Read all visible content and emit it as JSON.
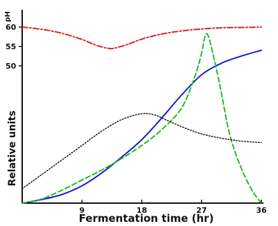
{
  "chart_data": {
    "type": "line",
    "xlabel": "Fermentation time (hr)",
    "ylabel": "Relative units",
    "y2label": "pH",
    "xlim": [
      0,
      36
    ],
    "xticks": [
      9,
      18,
      27,
      36
    ],
    "ph_axis": {
      "range": [
        4.5,
        6.2
      ],
      "ticks": [
        6.0,
        5.5,
        5.0
      ]
    },
    "ph_tick_labels": [
      "60",
      "55",
      "50"
    ],
    "grid": false,
    "legend": "none",
    "series": [
      {
        "color": "#e02020",
        "style": "dash-dot",
        "axis": "pH",
        "points": [
          [
            0,
            6.0
          ],
          [
            3,
            5.94
          ],
          [
            6,
            5.84
          ],
          [
            9,
            5.68
          ],
          [
            11,
            5.54
          ],
          [
            13,
            5.45
          ],
          [
            14,
            5.46
          ],
          [
            16,
            5.56
          ],
          [
            18,
            5.69
          ],
          [
            21,
            5.82
          ],
          [
            24,
            5.9
          ],
          [
            27,
            5.95
          ],
          [
            30,
            5.98
          ],
          [
            33,
            5.99
          ],
          [
            36,
            6.0
          ]
        ]
      },
      {
        "color": "#1a1ad8",
        "style": "solid",
        "axis": "relative",
        "points": [
          [
            0,
            0
          ],
          [
            3,
            2.5
          ],
          [
            6,
            6
          ],
          [
            9,
            12
          ],
          [
            12,
            21
          ],
          [
            15,
            32
          ],
          [
            18,
            44
          ],
          [
            21,
            59
          ],
          [
            24,
            75
          ],
          [
            27,
            89
          ],
          [
            30,
            97
          ],
          [
            33,
            102
          ],
          [
            36,
            106
          ]
        ]
      },
      {
        "color": "#22bb22",
        "style": "dashed",
        "axis": "relative",
        "points": [
          [
            0,
            0
          ],
          [
            3,
            3
          ],
          [
            6,
            9
          ],
          [
            9,
            16
          ],
          [
            12,
            23
          ],
          [
            15,
            31
          ],
          [
            18,
            40
          ],
          [
            21,
            51
          ],
          [
            24,
            66
          ],
          [
            26,
            88
          ],
          [
            27,
            104
          ],
          [
            27.5,
            115
          ],
          [
            28,
            116
          ],
          [
            29,
            98
          ],
          [
            30,
            76
          ],
          [
            31,
            52
          ],
          [
            32,
            36
          ],
          [
            33,
            24
          ],
          [
            34,
            14
          ],
          [
            35,
            6
          ],
          [
            36,
            0
          ]
        ]
      },
      {
        "color": "#222222",
        "style": "dotted",
        "axis": "relative",
        "points": [
          [
            0,
            10
          ],
          [
            3,
            20
          ],
          [
            6,
            30
          ],
          [
            9,
            40
          ],
          [
            12,
            50
          ],
          [
            15,
            58
          ],
          [
            18,
            62
          ],
          [
            20,
            61
          ],
          [
            22,
            57
          ],
          [
            24,
            53
          ],
          [
            27,
            48
          ],
          [
            30,
            45
          ],
          [
            33,
            43
          ],
          [
            36,
            42
          ]
        ]
      }
    ]
  }
}
